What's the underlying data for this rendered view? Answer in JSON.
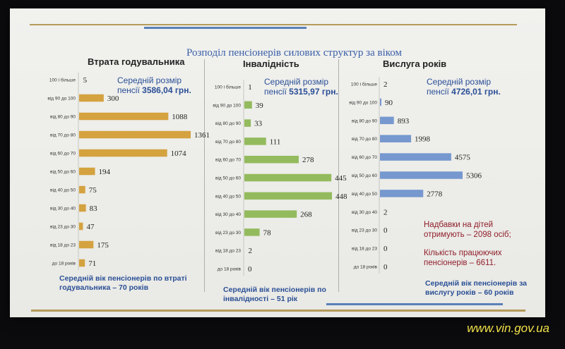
{
  "title": "Розподіл пенсіонерів силових структур за віком",
  "watermark": "www.vin.gov.ua",
  "notes": {
    "line1": "Надбавки на дітей",
    "line2": "отримують – 2098 осіб;",
    "line3": "Кількість працюючих",
    "line4": "пенсіонерів – 6611."
  },
  "colors": {
    "gold": "#d4a23f",
    "green": "#93bb5d",
    "blue": "#7698cf"
  },
  "panels": [
    {
      "title": "Втрата годувальника",
      "avg_label1": "Середній розмір",
      "avg_label2": "пенсії",
      "avg_value": "3586,04 грн.",
      "footer1": "Середній вік пенсіонерів по втраті",
      "footer2": "годувальника – 70 років"
    },
    {
      "title": "Інвалідність",
      "avg_label1": "Середній розмір",
      "avg_label2": "пенсії",
      "avg_value": "5315,97 грн.",
      "footer1": "Середній вік пенсіонерів по",
      "footer2": "інвалідності – 51 рік"
    },
    {
      "title": "Вислуга років",
      "avg_label1": "Середній розмір",
      "avg_label2": "пенсії",
      "avg_value": "4726,01 грн.",
      "footer1": "Середній вік пенсіонерів за",
      "footer2": "вислугу років – 60 років"
    }
  ],
  "chart_data": [
    {
      "type": "bar",
      "orientation": "horizontal",
      "title": "Втрата годувальника",
      "categories": [
        "100 і більше",
        "від 90 до 100",
        "від 80 до 90",
        "від 70 до 80",
        "від 60 до 70",
        "від 50 до 60",
        "від 40 до 50",
        "від 30 до 40",
        "від 23 до 30",
        "від 18 до 23",
        "до 18 років"
      ],
      "values": [
        5,
        300,
        1088,
        1361,
        1074,
        194,
        75,
        83,
        47,
        175,
        71
      ],
      "value_labels": [
        "5",
        "300",
        "1088",
        "1361",
        "1074",
        "194",
        "75",
        "83",
        "47",
        "175",
        "71"
      ],
      "color": "#d4a23f"
    },
    {
      "type": "bar",
      "orientation": "horizontal",
      "title": "Інвалідність",
      "categories": [
        "100 і більше",
        "від 90 до 100",
        "від 80 до 90",
        "від 70 до 80",
        "від 60 до 70",
        "від 50 до 60",
        "від 40 до 50",
        "від 30 до 40",
        "від 23 до 30",
        "від 18 до 23",
        "до 18 років"
      ],
      "values": [
        1,
        39,
        33,
        111,
        278,
        445,
        448,
        268,
        78,
        2,
        0
      ],
      "value_labels": [
        "1",
        "39",
        "33",
        "111",
        "278",
        "445",
        "448",
        "268",
        "78",
        "2",
        "0"
      ],
      "color": "#93bb5d"
    },
    {
      "type": "bar",
      "orientation": "horizontal",
      "title": "Вислуга років",
      "categories": [
        "100 і більше",
        "від 90 до 100",
        "від 80 до 90",
        "від 70 до 80",
        "від 60 до 70",
        "від 50 до 60",
        "від 40 до 50",
        "від 30 до 40",
        "від 23 до 30",
        "від 18 до 23",
        "до 18 років"
      ],
      "values": [
        2,
        90,
        893,
        1998,
        4575,
        5306,
        2778,
        2,
        0,
        0,
        0
      ],
      "value_labels": [
        "2",
        "90",
        "893",
        "1998",
        "4575",
        "5306",
        "2778",
        "2",
        "0",
        "0",
        "0"
      ],
      "color": "#7698cf"
    }
  ]
}
